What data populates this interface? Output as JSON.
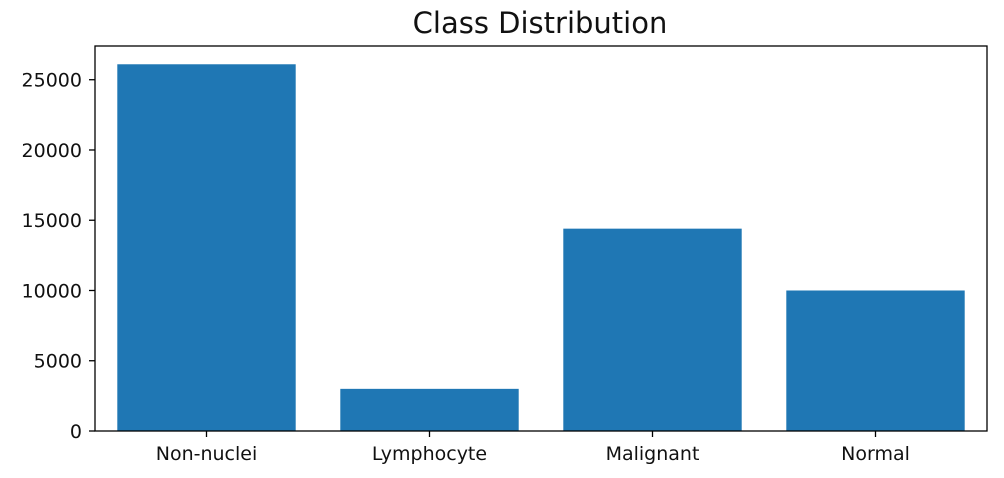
{
  "chart_data": {
    "type": "bar",
    "title": "Class Distribution",
    "xlabel": "",
    "ylabel": "",
    "categories": [
      "Non-nuclei",
      "Lymphocyte",
      "Malignant",
      "Normal"
    ],
    "values": [
      26100,
      3000,
      14400,
      10000
    ],
    "ylim": [
      0,
      27400
    ],
    "yticks": [
      0,
      5000,
      10000,
      15000,
      20000,
      25000
    ],
    "bar_color": "#1f77b4",
    "grid": false,
    "legend": "none"
  }
}
